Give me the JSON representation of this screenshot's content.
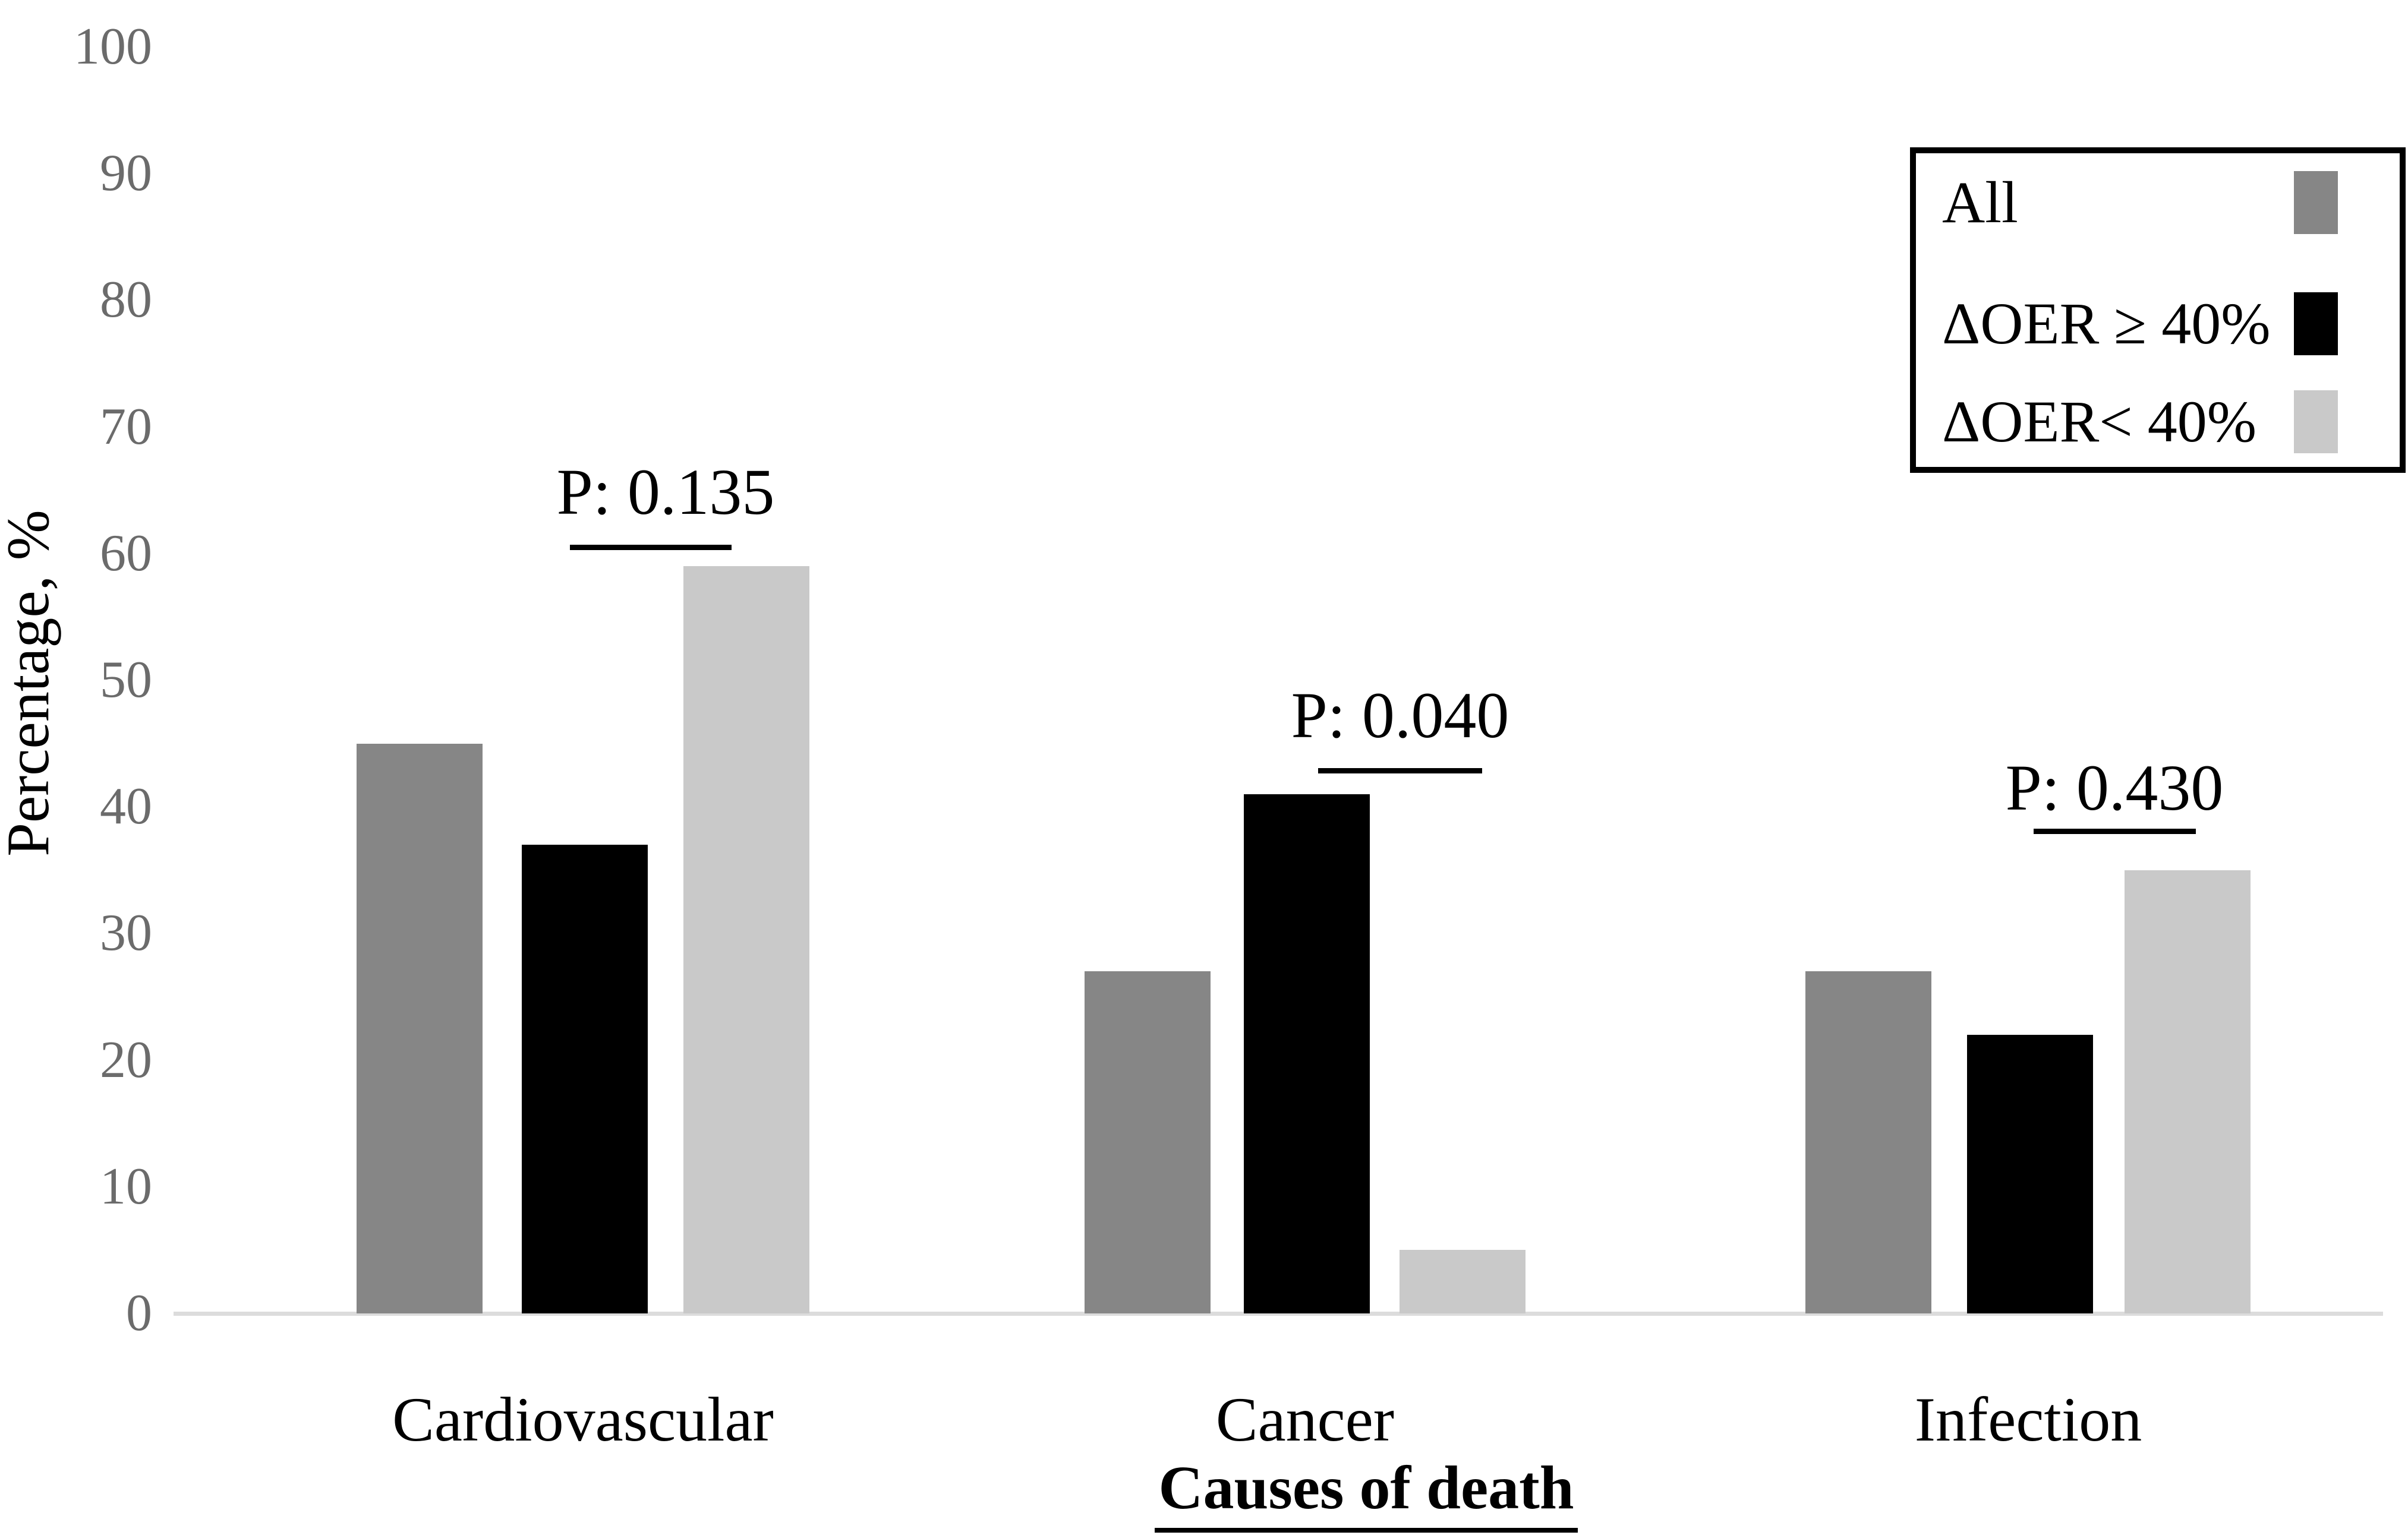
{
  "chart_data": {
    "type": "bar",
    "title": "",
    "xlabel": "Causes of death",
    "ylabel": "Percentage, %",
    "ylim": [
      0,
      100
    ],
    "y_ticks": [
      0,
      10,
      20,
      30,
      40,
      50,
      60,
      70,
      80,
      90,
      100
    ],
    "grid": false,
    "legend_position": "top-right",
    "categories": [
      "Cardiovascular",
      "Cancer",
      "Infection"
    ],
    "series": [
      {
        "name": "All",
        "color": "#868686",
        "values": [
          45,
          27,
          27
        ]
      },
      {
        "name": "ΔOER ≥ 40%",
        "color": "#000000",
        "values": [
          37,
          41,
          22
        ]
      },
      {
        "name": "ΔOER< 40%",
        "color": "#c9c9c9",
        "values": [
          59,
          5,
          35
        ]
      }
    ],
    "p_values": [
      {
        "category": "Cardiovascular",
        "label": "P: 0.135"
      },
      {
        "category": "Cancer",
        "label": "P: 0.040"
      },
      {
        "category": "Infection",
        "label": "P: 0.430"
      }
    ]
  },
  "colors": {
    "background": "#ffffff",
    "tick_label": "#6b6b6b",
    "axis_line": "#dcdcdc",
    "annotation": "#000000",
    "legend_border": "#000000"
  }
}
